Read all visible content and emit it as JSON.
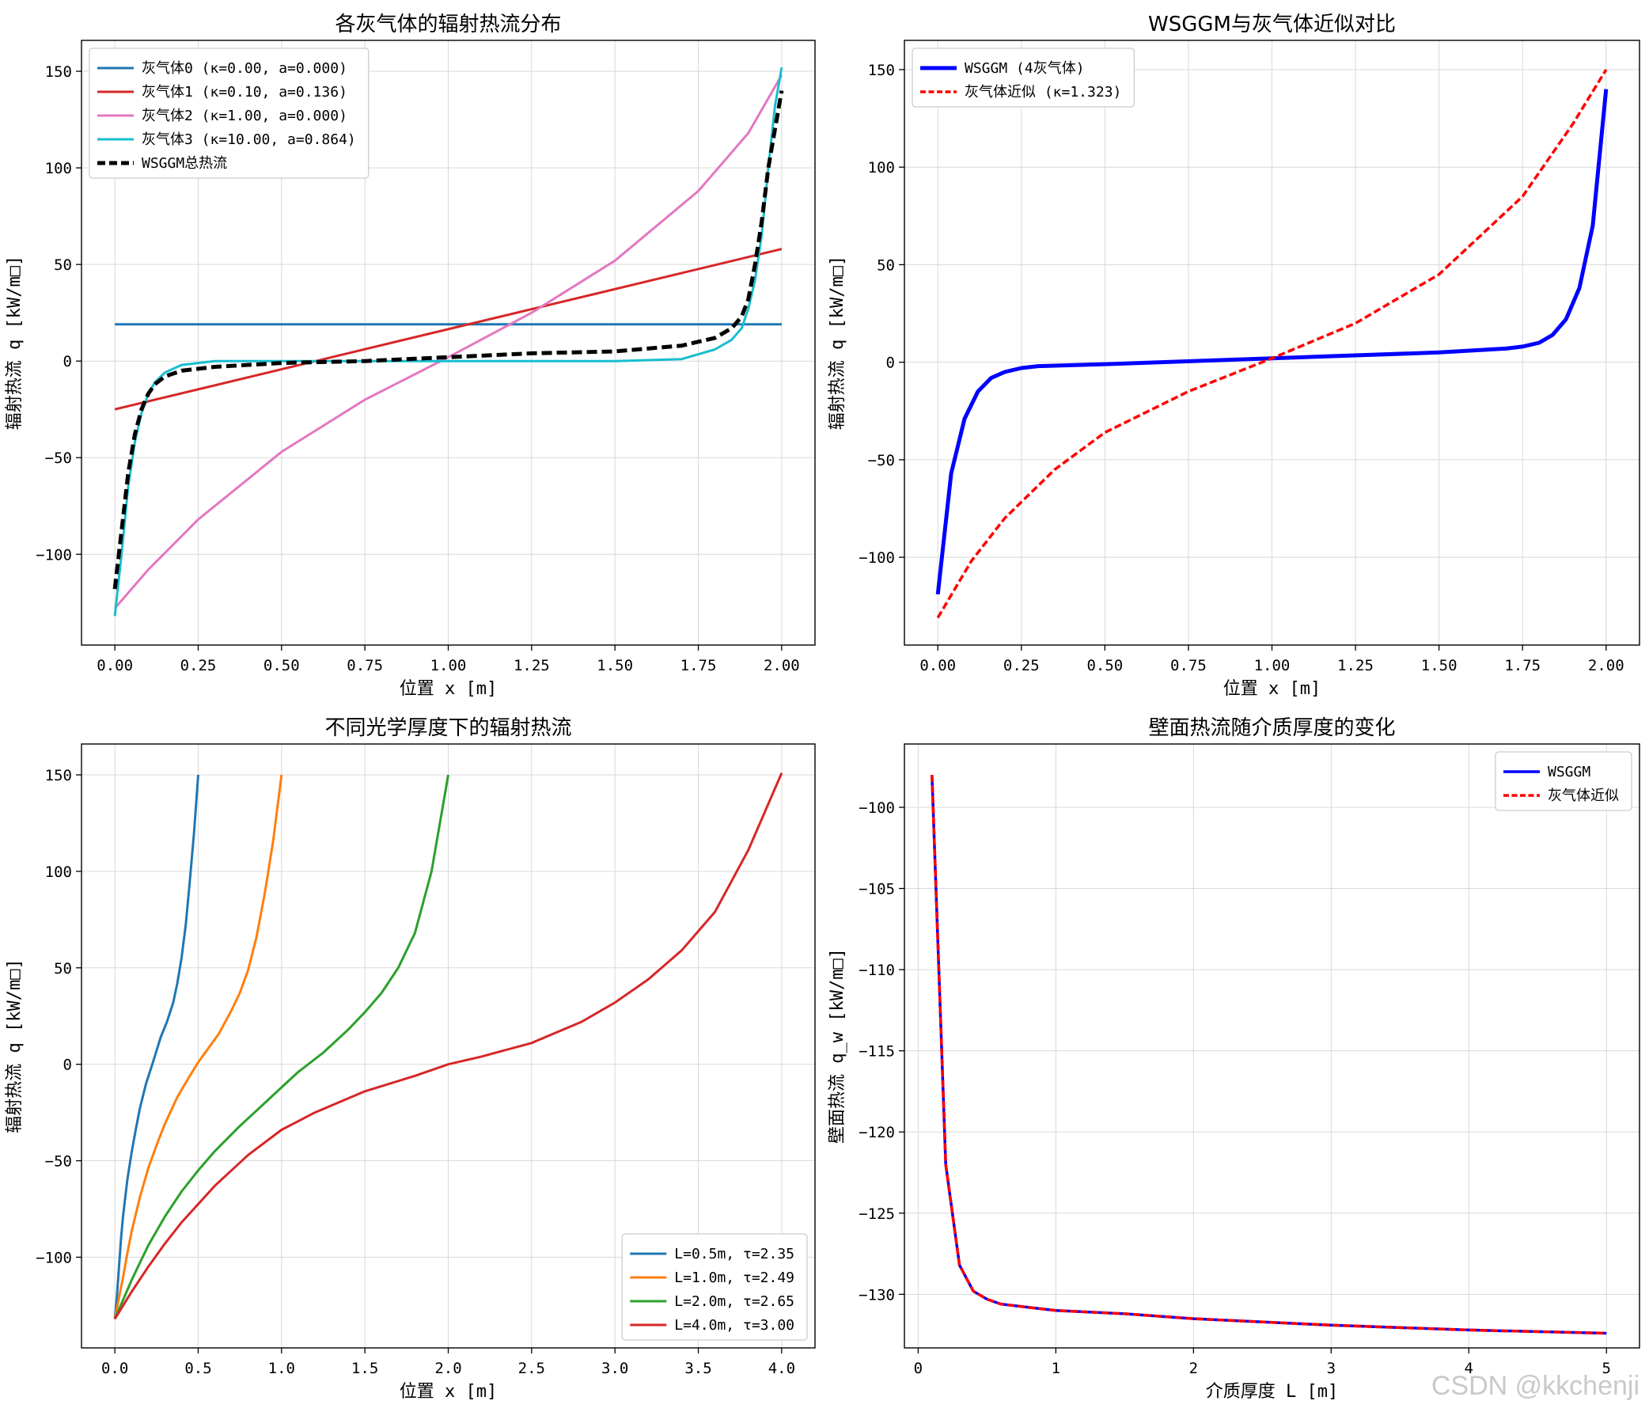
{
  "watermark": "CSDN @kkchenji",
  "chart_data": [
    {
      "type": "line",
      "title": "各灰气体的辐射热流分布",
      "xlabel": "位置 x [m]",
      "ylabel": "辐射热流 q [kW/m□]",
      "xlim": [
        -0.1,
        2.1
      ],
      "ylim": [
        -147,
        166
      ],
      "xticks": [
        0.0,
        0.25,
        0.5,
        0.75,
        1.0,
        1.25,
        1.5,
        1.75,
        2.0
      ],
      "xtick_labels": [
        "0.00",
        "0.25",
        "0.50",
        "0.75",
        "1.00",
        "1.25",
        "1.50",
        "1.75",
        "2.00"
      ],
      "yticks": [
        -100,
        -50,
        0,
        50,
        100,
        150
      ],
      "ytick_labels": [
        "−100",
        "−50",
        "0",
        "50",
        "100",
        "150"
      ],
      "grid": true,
      "legend": "top-left",
      "series": [
        {
          "name": "灰气体0 (κ=0.00, a=0.000)",
          "color": "#1f77b4",
          "dash": "solid",
          "width": 3,
          "x": [
            0,
            2
          ],
          "y": [
            19,
            19
          ]
        },
        {
          "name": "灰气体1 (κ=0.10, a=0.136)",
          "color": "#d62728",
          "dash": "solid",
          "width": 3,
          "x": [
            0,
            2
          ],
          "y": [
            -25,
            58
          ]
        },
        {
          "name": "灰气体2 (κ=1.00, a=0.000)",
          "color": "#e377c2",
          "dash": "solid",
          "width": 3,
          "x": [
            0,
            0.1,
            0.25,
            0.5,
            0.75,
            1.0,
            1.25,
            1.5,
            1.75,
            1.9,
            2.0
          ],
          "y": [
            -128,
            -108,
            -82,
            -47,
            -20,
            2,
            25,
            52,
            88,
            118,
            148
          ]
        },
        {
          "name": "灰气体3 (κ=10.00, a=0.864)",
          "color": "#17becf",
          "dash": "solid",
          "width": 3,
          "x": [
            0,
            0.02,
            0.04,
            0.06,
            0.08,
            0.1,
            0.12,
            0.15,
            0.2,
            0.3,
            0.5,
            1.0,
            1.5,
            1.7,
            1.8,
            1.85,
            1.88,
            1.9,
            1.92,
            1.94,
            1.96,
            1.98,
            2.0
          ],
          "y": [
            -132,
            -100,
            -65,
            -42,
            -27,
            -17,
            -11,
            -6,
            -2,
            0,
            0,
            0,
            0,
            1,
            6,
            11,
            17,
            27,
            42,
            65,
            100,
            132,
            152
          ]
        },
        {
          "name": "WSGGM总热流",
          "color": "#000000",
          "dash": "dashed",
          "width": 5,
          "x": [
            0,
            0.02,
            0.04,
            0.06,
            0.08,
            0.1,
            0.12,
            0.15,
            0.2,
            0.3,
            0.5,
            0.75,
            1.0,
            1.25,
            1.5,
            1.7,
            1.8,
            1.85,
            1.88,
            1.9,
            1.92,
            1.94,
            1.96,
            1.98,
            2.0
          ],
          "y": [
            -118,
            -88,
            -58,
            -38,
            -25,
            -17,
            -12,
            -8,
            -5,
            -3,
            -1,
            0,
            2,
            4,
            5,
            8,
            12,
            17,
            23,
            32,
            50,
            72,
            100,
            120,
            140
          ]
        }
      ]
    },
    {
      "type": "line",
      "title": "WSGGM与灰气体近似对比",
      "xlabel": "位置 x [m]",
      "ylabel": "辐射热流 q [kW/m□]",
      "xlim": [
        -0.1,
        2.1
      ],
      "ylim": [
        -145,
        165
      ],
      "xticks": [
        0.0,
        0.25,
        0.5,
        0.75,
        1.0,
        1.25,
        1.5,
        1.75,
        2.0
      ],
      "xtick_labels": [
        "0.00",
        "0.25",
        "0.50",
        "0.75",
        "1.00",
        "1.25",
        "1.50",
        "1.75",
        "2.00"
      ],
      "yticks": [
        -100,
        -50,
        0,
        50,
        100,
        150
      ],
      "ytick_labels": [
        "−100",
        "−50",
        "0",
        "50",
        "100",
        "150"
      ],
      "grid": true,
      "legend": "top-left",
      "series": [
        {
          "name": "WSGGM (4灰气体)",
          "color": "#0000ff",
          "dash": "solid",
          "width": 5,
          "x": [
            0,
            0.04,
            0.08,
            0.12,
            0.16,
            0.2,
            0.25,
            0.3,
            0.5,
            1.0,
            1.5,
            1.7,
            1.75,
            1.8,
            1.84,
            1.88,
            1.92,
            1.96,
            2.0
          ],
          "y": [
            -119,
            -57,
            -29,
            -15,
            -8,
            -5,
            -3,
            -2,
            -1,
            2,
            5,
            7,
            8,
            10,
            14,
            22,
            38,
            70,
            140
          ]
        },
        {
          "name": "灰气体近似 (κ=1.323)",
          "color": "#ff0000",
          "dash": "dashed",
          "width": 3.5,
          "x": [
            0,
            0.1,
            0.2,
            0.35,
            0.5,
            0.75,
            1.0,
            1.25,
            1.5,
            1.75,
            1.9,
            2.0
          ],
          "y": [
            -131,
            -102,
            -80,
            -55,
            -36,
            -15,
            2,
            20,
            45,
            85,
            122,
            150
          ]
        }
      ]
    },
    {
      "type": "line",
      "title": "不同光学厚度下的辐射热流",
      "xlabel": "位置 x [m]",
      "ylabel": "辐射热流 q [kW/m□]",
      "xlim": [
        -0.2,
        4.2
      ],
      "ylim": [
        -147,
        166
      ],
      "xticks": [
        0.0,
        0.5,
        1.0,
        1.5,
        2.0,
        2.5,
        3.0,
        3.5,
        4.0
      ],
      "xtick_labels": [
        "0.0",
        "0.5",
        "1.0",
        "1.5",
        "2.0",
        "2.5",
        "3.0",
        "3.5",
        "4.0"
      ],
      "yticks": [
        -100,
        -50,
        0,
        50,
        100,
        150
      ],
      "ytick_labels": [
        "−100",
        "−50",
        "0",
        "50",
        "100",
        "150"
      ],
      "grid": true,
      "legend": "bottom-right",
      "series": [
        {
          "name": "L=0.5m, τ=2.35",
          "color": "#1f77b4",
          "dash": "solid",
          "width": 3,
          "x": [
            0,
            0.0125,
            0.025,
            0.0375,
            0.05,
            0.075,
            0.1,
            0.125,
            0.15,
            0.1875,
            0.225,
            0.25,
            0.275,
            0.3125,
            0.35,
            0.375,
            0.4,
            0.425,
            0.45,
            0.475,
            0.5
          ],
          "y": [
            -132,
            -120,
            -105,
            -90,
            -78,
            -60,
            -46,
            -34,
            -23,
            -10,
            0,
            7,
            14,
            22,
            32,
            42,
            55,
            72,
            95,
            120,
            150
          ]
        },
        {
          "name": "L=1.0m, τ=2.49",
          "color": "#ff7f0e",
          "dash": "solid",
          "width": 3,
          "x": [
            0,
            0.025,
            0.05,
            0.075,
            0.1,
            0.15,
            0.2,
            0.25,
            0.3,
            0.375,
            0.45,
            0.5,
            0.55,
            0.625,
            0.7,
            0.75,
            0.8,
            0.85,
            0.9,
            0.95,
            1.0
          ],
          "y": [
            -132,
            -121,
            -110,
            -98,
            -87,
            -69,
            -54,
            -42,
            -31,
            -17,
            -6,
            1,
            7,
            16,
            28,
            37,
            49,
            66,
            89,
            116,
            150
          ]
        },
        {
          "name": "L=2.0m, τ=2.65",
          "color": "#2ca02c",
          "dash": "solid",
          "width": 3,
          "x": [
            0,
            0.05,
            0.1,
            0.15,
            0.2,
            0.3,
            0.4,
            0.5,
            0.6,
            0.75,
            0.9,
            1.0,
            1.1,
            1.25,
            1.4,
            1.5,
            1.6,
            1.7,
            1.8,
            1.9,
            2.0
          ],
          "y": [
            -132,
            -122,
            -112,
            -103,
            -94,
            -79,
            -66,
            -55,
            -45,
            -32,
            -20,
            -12,
            -4,
            6,
            18,
            27,
            37,
            50,
            68,
            100,
            150
          ]
        },
        {
          "name": "L=4.0m, τ=3.00",
          "color": "#d62728",
          "dash": "solid",
          "width": 3,
          "x": [
            0,
            0.1,
            0.2,
            0.3,
            0.4,
            0.6,
            0.8,
            1.0,
            1.2,
            1.5,
            1.8,
            2.0,
            2.2,
            2.5,
            2.8,
            3.0,
            3.2,
            3.4,
            3.6,
            3.8,
            4.0
          ],
          "y": [
            -132,
            -118,
            -105,
            -93,
            -82,
            -63,
            -47,
            -34,
            -25,
            -14,
            -6,
            0,
            4,
            11,
            22,
            32,
            44,
            59,
            79,
            111,
            151
          ]
        }
      ]
    },
    {
      "type": "line",
      "title": "壁面热流随介质厚度的变化",
      "xlabel": "介质厚度 L [m]",
      "ylabel": "壁面热流 q_w [kW/m□]",
      "xlim": [
        -0.1,
        5.24
      ],
      "ylim": [
        -133.3,
        -96.1
      ],
      "xticks": [
        0,
        1,
        2,
        3,
        4,
        5
      ],
      "xtick_labels": [
        "0",
        "1",
        "2",
        "3",
        "4",
        "5"
      ],
      "yticks": [
        -130,
        -125,
        -120,
        -115,
        -110,
        -105,
        -100
      ],
      "ytick_labels": [
        "−130",
        "−125",
        "−120",
        "−115",
        "−110",
        "−105",
        "−100"
      ],
      "grid": true,
      "legend": "top-right",
      "series": [
        {
          "name": "WSGGM",
          "color": "#0000ff",
          "dash": "solid",
          "width": 3.5,
          "x": [
            0.1,
            0.2,
            0.3,
            0.4,
            0.5,
            0.6,
            0.8,
            1.0,
            1.5,
            2.0,
            3.0,
            4.0,
            5.0
          ],
          "y": [
            -98,
            -122,
            -128.2,
            -129.8,
            -130.3,
            -130.6,
            -130.8,
            -131.0,
            -131.2,
            -131.5,
            -131.9,
            -132.2,
            -132.4
          ]
        },
        {
          "name": "灰气体近似",
          "color": "#ff0000",
          "dash": "dashed",
          "width": 3.5,
          "x": [
            0.1,
            0.2,
            0.3,
            0.4,
            0.5,
            0.6,
            0.8,
            1.0,
            1.5,
            2.0,
            3.0,
            4.0,
            5.0
          ],
          "y": [
            -98,
            -122,
            -128.2,
            -129.8,
            -130.3,
            -130.6,
            -130.8,
            -131.0,
            -131.2,
            -131.5,
            -131.9,
            -132.2,
            -132.4
          ]
        }
      ]
    }
  ]
}
